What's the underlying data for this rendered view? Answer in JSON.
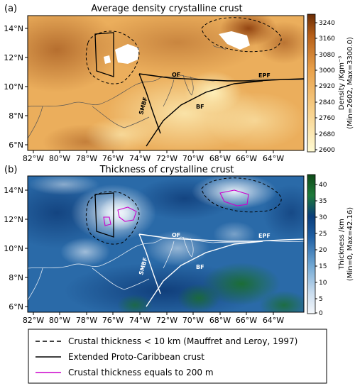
{
  "panel_a": {
    "label": "(a)",
    "title": "Average density crystalline crust",
    "colorbar_label_line1": "Density /Kgm⁻³",
    "colorbar_label_line2": "(Min=2602, Max=3300.0)",
    "colorbar_ticks": [
      "3240",
      "3160",
      "3080",
      "3000",
      "2920",
      "2840",
      "2760",
      "2680",
      "2600"
    ],
    "colors": {
      "low": "#fffbd4",
      "mid": "#e8a04a",
      "high": "#6a2c06"
    }
  },
  "panel_b": {
    "label": "(b)",
    "title": "Thickness of crystalline crust",
    "colorbar_label_line1": "Thickness /km",
    "colorbar_label_line2": "(Min=0, Max=42.16)",
    "colorbar_ticks": [
      "40",
      "35",
      "30",
      "25",
      "20",
      "15",
      "10",
      "5",
      "0"
    ],
    "colors": {
      "low": "#f4f7fb",
      "mid": "#3b78b3",
      "high": "#0f5a1a"
    }
  },
  "x_ticks": [
    "82°W",
    "80°W",
    "78°W",
    "76°W",
    "74°W",
    "72°W",
    "70°W",
    "68°W",
    "66°W",
    "64°W"
  ],
  "y_ticks": [
    "14°N",
    "12°N",
    "10°N",
    "8°N",
    "6°N"
  ],
  "fault_labels": {
    "of": "OF",
    "epf": "EPF",
    "smbf": "SMBF",
    "bf": "BF"
  },
  "legend": [
    {
      "label": "Crustal thickness < 10 km (Mauffret and Leroy, 1997)",
      "style": "dashed",
      "color": "#000000"
    },
    {
      "label": "Extended Proto-Caribbean crust",
      "style": "solid",
      "color": "#000000"
    },
    {
      "label": "Crustal thickness equals to 200 m",
      "style": "solid",
      "color": "#cc00cc"
    }
  ]
}
